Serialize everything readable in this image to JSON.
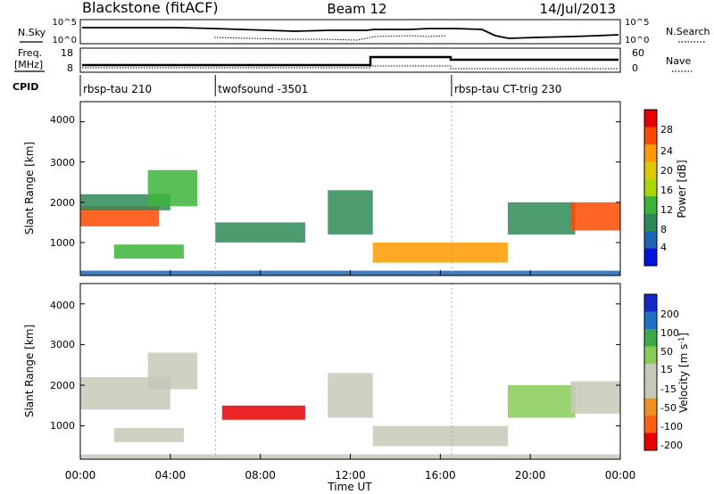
{
  "header": {
    "station": "Blackstone (fitACF)",
    "beam": "Beam 12",
    "date": "14/Jul/2013"
  },
  "noise_panel": {
    "left_label": "N.Sky",
    "right_label": "N.Search",
    "left_ticks": [
      "10^5",
      "10^0"
    ],
    "right_ticks": [
      "10^5",
      "10^0"
    ]
  },
  "freq_panel": {
    "left_label_1": "Freq.",
    "left_label_2": "[MHz]",
    "right_label": "Nave",
    "left_ticks": [
      "18",
      "8"
    ],
    "right_ticks": [
      "60",
      "0"
    ]
  },
  "cpid": {
    "label": "CPID",
    "segments": [
      {
        "start_h": 0,
        "end_h": 6,
        "name": "rbsp-tau 210"
      },
      {
        "start_h": 6,
        "end_h": 16.5,
        "name": "twofsound -3501"
      },
      {
        "start_h": 16.5,
        "end_h": 24,
        "name": "rbsp-tau CT-trig 230"
      }
    ]
  },
  "power_panel": {
    "ylabel": "Slant Range [km]",
    "yticks": [
      "4000",
      "3000",
      "2000",
      "1000"
    ],
    "colorbar_label": "Power [dB]",
    "colorbar_ticks": [
      "28",
      "24",
      "20",
      "16",
      "12",
      "8",
      "4"
    ],
    "colorbar_colors": [
      "#e60000",
      "#ff4a00",
      "#ff9a00",
      "#e0c800",
      "#a8d800",
      "#3cb43c",
      "#2e8b57",
      "#1e64b4",
      "#0014dc"
    ]
  },
  "velocity_panel": {
    "ylabel": "Slant Range [km]",
    "yticks": [
      "4000",
      "3000",
      "2000",
      "1000"
    ],
    "colorbar_label": "Velocity [m s",
    "colorbar_label_sup": "-1",
    "colorbar_label_end": "]",
    "colorbar_ticks": [
      "200",
      "100",
      "50",
      "15",
      "-15",
      "-50",
      "-100",
      "-200"
    ],
    "colorbar_colors": [
      "#1428c8",
      "#2070c8",
      "#40a848",
      "#88cc58",
      "#c8c8b8",
      "#c8c8b8",
      "#f09020",
      "#ff6010",
      "#e80000"
    ]
  },
  "xaxis": {
    "label": "Time UT",
    "ticks": [
      "00:00",
      "04:00",
      "08:00",
      "12:00",
      "16:00",
      "20:00",
      "00:00"
    ]
  },
  "chart_data": {
    "type": "heatmap",
    "title": "Blackstone (fitACF)",
    "subtitle": "Beam 12",
    "date": "14/Jul/2013",
    "xlabel": "Time UT",
    "ylabel": "Slant Range [km]",
    "xlim_hours": [
      0,
      24
    ],
    "ylim_km": [
      180,
      4500
    ],
    "panels": [
      {
        "name": "Power [dB]",
        "scale": [
          0,
          32
        ],
        "regions": [
          {
            "t0": 0,
            "t1": 3.5,
            "r0": 1400,
            "r1": 1900,
            "value": 26
          },
          {
            "t0": 0,
            "t1": 4.0,
            "r0": 1800,
            "r1": 2200,
            "value": 10
          },
          {
            "t0": 3.0,
            "t1": 5.2,
            "r0": 1900,
            "r1": 2800,
            "value": 14
          },
          {
            "t0": 1.5,
            "t1": 4.6,
            "r0": 600,
            "r1": 950,
            "value": 12
          },
          {
            "t0": 6.0,
            "t1": 10.0,
            "r0": 1000,
            "r1": 1500,
            "value": 8
          },
          {
            "t0": 11.0,
            "t1": 13.0,
            "r0": 1200,
            "r1": 2300,
            "value": 9
          },
          {
            "t0": 13.0,
            "t1": 19.0,
            "r0": 500,
            "r1": 1000,
            "value": 22
          },
          {
            "t0": 19.0,
            "t1": 22.0,
            "r0": 1200,
            "r1": 2000,
            "value": 8
          },
          {
            "t0": 21.8,
            "t1": 24.0,
            "r0": 1300,
            "r1": 2000,
            "value": 27
          },
          {
            "t0": 0,
            "t1": 24.0,
            "r0": 180,
            "r1": 300,
            "value": 6
          }
        ]
      },
      {
        "name": "Velocity [m s-1]",
        "scale": [
          -200,
          200
        ],
        "regions": [
          {
            "t0": 0,
            "t1": 4.0,
            "r0": 1400,
            "r1": 2200,
            "value": 0
          },
          {
            "t0": 3.0,
            "t1": 5.2,
            "r0": 1900,
            "r1": 2800,
            "value": 20
          },
          {
            "t0": 1.5,
            "t1": 4.6,
            "r0": 600,
            "r1": 950,
            "value": 0
          },
          {
            "t0": 6.3,
            "t1": 10.0,
            "r0": 1150,
            "r1": 1500,
            "value": -200
          },
          {
            "t0": 11.0,
            "t1": 13.0,
            "r0": 1200,
            "r1": 2300,
            "value": -60
          },
          {
            "t0": 13.0,
            "t1": 19.0,
            "r0": 500,
            "r1": 1000,
            "value": 0
          },
          {
            "t0": 19.0,
            "t1": 22.0,
            "r0": 1200,
            "r1": 2000,
            "value": 40
          },
          {
            "t0": 21.8,
            "t1": 24.0,
            "r0": 1300,
            "r1": 2100,
            "value": 0
          },
          {
            "t0": 0,
            "t1": 24.0,
            "r0": 180,
            "r1": 300,
            "value": 0
          }
        ]
      }
    ]
  }
}
